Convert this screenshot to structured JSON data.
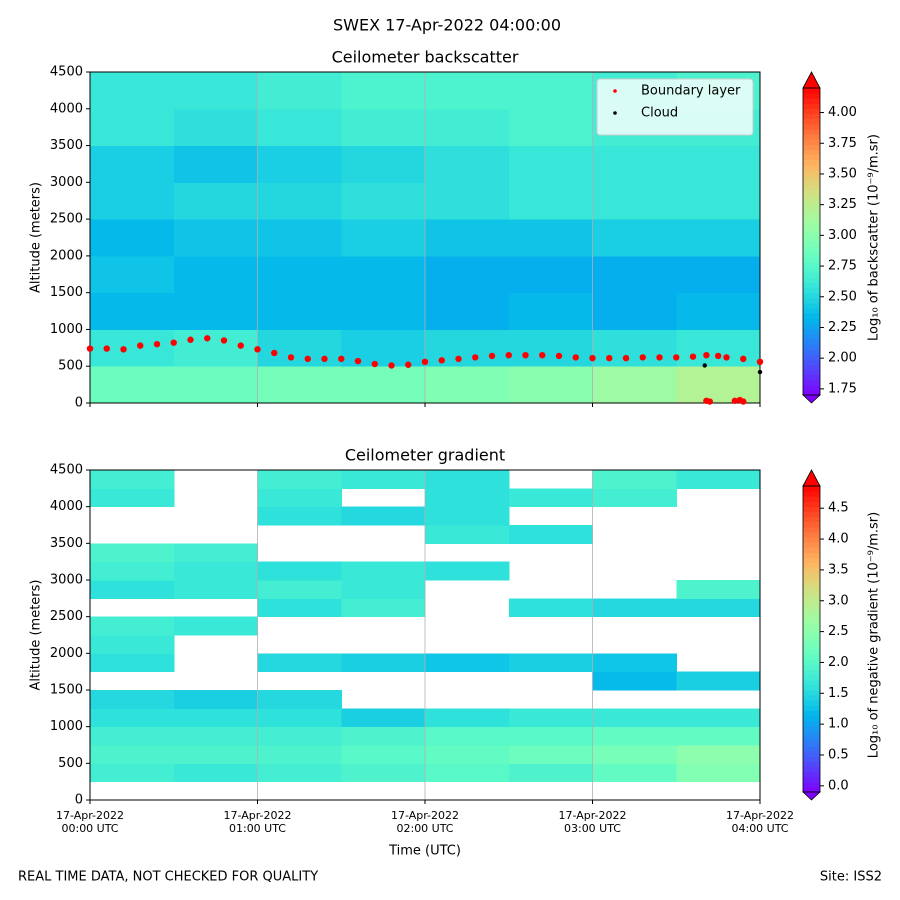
{
  "title": "SWEX 17-Apr-2022 04:00:00",
  "footer_left": "REAL TIME DATA, NOT CHECKED FOR QUALITY",
  "footer_right": "Site: ISS2",
  "chart_data": [
    {
      "type": "heatmap",
      "title": "Ceilometer backscatter",
      "ylabel": "Altitude (meters)",
      "colorbar_label": "Log₁₀ of backscatter (10⁻⁹/m.sr)",
      "colormap": "rainbow",
      "clim": [
        1.7,
        4.2
      ],
      "extend": "both",
      "cticks": [
        {
          "value": 1.75,
          "label": "1.75"
        },
        {
          "value": 2,
          "label": "2.00"
        },
        {
          "value": 2.25,
          "label": "2.25"
        },
        {
          "value": 2.5,
          "label": "2.50"
        },
        {
          "value": 2.75,
          "label": "2.75"
        },
        {
          "value": 3,
          "label": "3.00"
        },
        {
          "value": 3.25,
          "label": "3.25"
        },
        {
          "value": 3.5,
          "label": "3.50"
        },
        {
          "value": 3.75,
          "label": "3.75"
        },
        {
          "value": 4,
          "label": "4.00"
        }
      ],
      "xlim": [
        0,
        4
      ],
      "xticks": [
        0,
        1,
        2,
        3,
        4
      ],
      "ylim": [
        0,
        4500
      ],
      "yticks": [
        0,
        500,
        1000,
        1500,
        2000,
        2500,
        3000,
        3500,
        4000,
        4500
      ],
      "grid": "x",
      "z": [
        [
          2.85,
          2.85,
          2.9,
          2.9,
          2.95,
          3.0,
          3.1,
          3.2
        ],
        [
          2.6,
          2.65,
          2.5,
          2.45,
          2.5,
          2.5,
          2.55,
          2.6
        ],
        [
          2.35,
          2.35,
          2.35,
          2.35,
          2.3,
          2.35,
          2.3,
          2.35
        ],
        [
          2.4,
          2.35,
          2.35,
          2.35,
          2.3,
          2.3,
          2.3,
          2.3
        ],
        [
          2.35,
          2.4,
          2.4,
          2.45,
          2.4,
          2.4,
          2.45,
          2.45
        ],
        [
          2.45,
          2.5,
          2.5,
          2.55,
          2.55,
          2.6,
          2.6,
          2.6
        ],
        [
          2.45,
          2.4,
          2.45,
          2.5,
          2.55,
          2.6,
          2.6,
          2.6
        ],
        [
          2.6,
          2.55,
          2.6,
          2.65,
          2.65,
          2.7,
          2.65,
          2.65
        ],
        [
          2.6,
          2.6,
          2.65,
          2.7,
          2.7,
          2.7,
          2.65,
          2.7
        ]
      ],
      "legend": "upper right",
      "series": [
        {
          "name": "Boundary layer",
          "color": "#ff0000",
          "x": [
            0,
            0.1,
            0.2,
            0.3,
            0.4,
            0.5,
            0.6,
            0.7,
            0.8,
            0.9,
            1.0,
            1.1,
            1.2,
            1.3,
            1.4,
            1.5,
            1.6,
            1.7,
            1.8,
            1.9,
            2.0,
            2.1,
            2.2,
            2.3,
            2.4,
            2.5,
            2.6,
            2.7,
            2.8,
            2.9,
            3.0,
            3.1,
            3.2,
            3.3,
            3.4,
            3.5,
            3.6,
            3.68,
            3.75,
            3.8,
            3.9,
            4.0,
            3.68,
            3.7,
            3.85,
            3.88,
            3.9
          ],
          "values": [
            740,
            740,
            730,
            780,
            800,
            820,
            860,
            880,
            850,
            780,
            730,
            680,
            620,
            600,
            600,
            600,
            570,
            530,
            510,
            520,
            560,
            580,
            600,
            620,
            640,
            650,
            650,
            650,
            640,
            620,
            610,
            610,
            610,
            620,
            620,
            620,
            630,
            650,
            640,
            620,
            600,
            560,
            30,
            20,
            30,
            40,
            20
          ]
        },
        {
          "name": "Cloud",
          "color": "#000000",
          "x": [
            3.67,
            4.0
          ],
          "values": [
            510,
            420
          ]
        }
      ]
    },
    {
      "type": "heatmap",
      "title": "Ceilometer gradient",
      "ylabel": "Altitude (meters)",
      "xlabel": "Time (UTC)",
      "colorbar_label": "Log₁₀ of negative gradient (10⁻⁹/m.sr)",
      "colormap": "rainbow",
      "clim": [
        -0.1,
        4.86
      ],
      "extend": "both",
      "cticks": [
        {
          "value": 0,
          "label": "0.0"
        },
        {
          "value": 0.5,
          "label": "0.5"
        },
        {
          "value": 1,
          "label": "1.0"
        },
        {
          "value": 1.5,
          "label": "1.5"
        },
        {
          "value": 2,
          "label": "2.0"
        },
        {
          "value": 2.5,
          "label": "2.5"
        },
        {
          "value": 3,
          "label": "3.0"
        },
        {
          "value": 3.5,
          "label": "3.5"
        },
        {
          "value": 4,
          "label": "4.0"
        },
        {
          "value": 4.5,
          "label": "4.5"
        }
      ],
      "xlim": [
        0,
        4
      ],
      "xticks": [
        {
          "value": 0,
          "label": "17-Apr-2022\n00:00 UTC"
        },
        {
          "value": 1,
          "label": "17-Apr-2022\n01:00 UTC"
        },
        {
          "value": 2,
          "label": "17-Apr-2022\n02:00 UTC"
        },
        {
          "value": 3,
          "label": "17-Apr-2022\n03:00 UTC"
        },
        {
          "value": 4,
          "label": "17-Apr-2022\n04:00 UTC"
        }
      ],
      "ylim": [
        0,
        4500
      ],
      "yticks": [
        0,
        500,
        1000,
        1500,
        2000,
        2500,
        3000,
        3500,
        4000,
        4500
      ],
      "grid": "x",
      "z": [
        [
          null,
          null,
          null,
          null,
          null,
          null,
          null,
          null
        ],
        [
          1.8,
          1.7,
          1.8,
          1.9,
          2.0,
          1.9,
          2.1,
          2.4
        ],
        [
          1.9,
          1.9,
          1.9,
          2.0,
          2.1,
          2.2,
          2.3,
          2.5
        ],
        [
          1.8,
          1.8,
          1.8,
          1.9,
          2.0,
          2.0,
          2.1,
          2.1
        ],
        [
          1.6,
          1.6,
          1.6,
          1.4,
          1.6,
          1.7,
          1.7,
          1.7
        ],
        [
          1.5,
          1.4,
          1.5,
          null,
          null,
          null,
          null,
          null
        ],
        [
          null,
          null,
          null,
          null,
          null,
          null,
          1.2,
          1.4
        ],
        [
          1.6,
          null,
          1.5,
          1.4,
          1.3,
          1.4,
          1.3,
          null
        ],
        [
          1.7,
          null,
          null,
          null,
          null,
          null,
          null,
          null
        ],
        [
          1.8,
          1.7,
          null,
          null,
          null,
          null,
          null,
          null
        ],
        [
          null,
          null,
          1.6,
          1.8,
          null,
          1.6,
          1.5,
          1.5
        ],
        [
          1.6,
          1.7,
          1.8,
          1.7,
          null,
          null,
          null,
          1.9
        ],
        [
          1.8,
          1.7,
          1.6,
          1.7,
          1.6,
          null,
          null,
          null
        ],
        [
          1.9,
          1.8,
          null,
          null,
          null,
          null,
          null,
          null
        ],
        [
          null,
          null,
          null,
          null,
          1.7,
          1.6,
          null,
          null
        ],
        [
          null,
          null,
          1.6,
          1.5,
          1.6,
          null,
          null,
          null
        ],
        [
          1.7,
          null,
          1.7,
          null,
          1.6,
          1.7,
          1.8,
          null
        ],
        [
          1.8,
          null,
          1.8,
          1.7,
          1.6,
          null,
          1.9,
          1.7
        ]
      ]
    }
  ]
}
